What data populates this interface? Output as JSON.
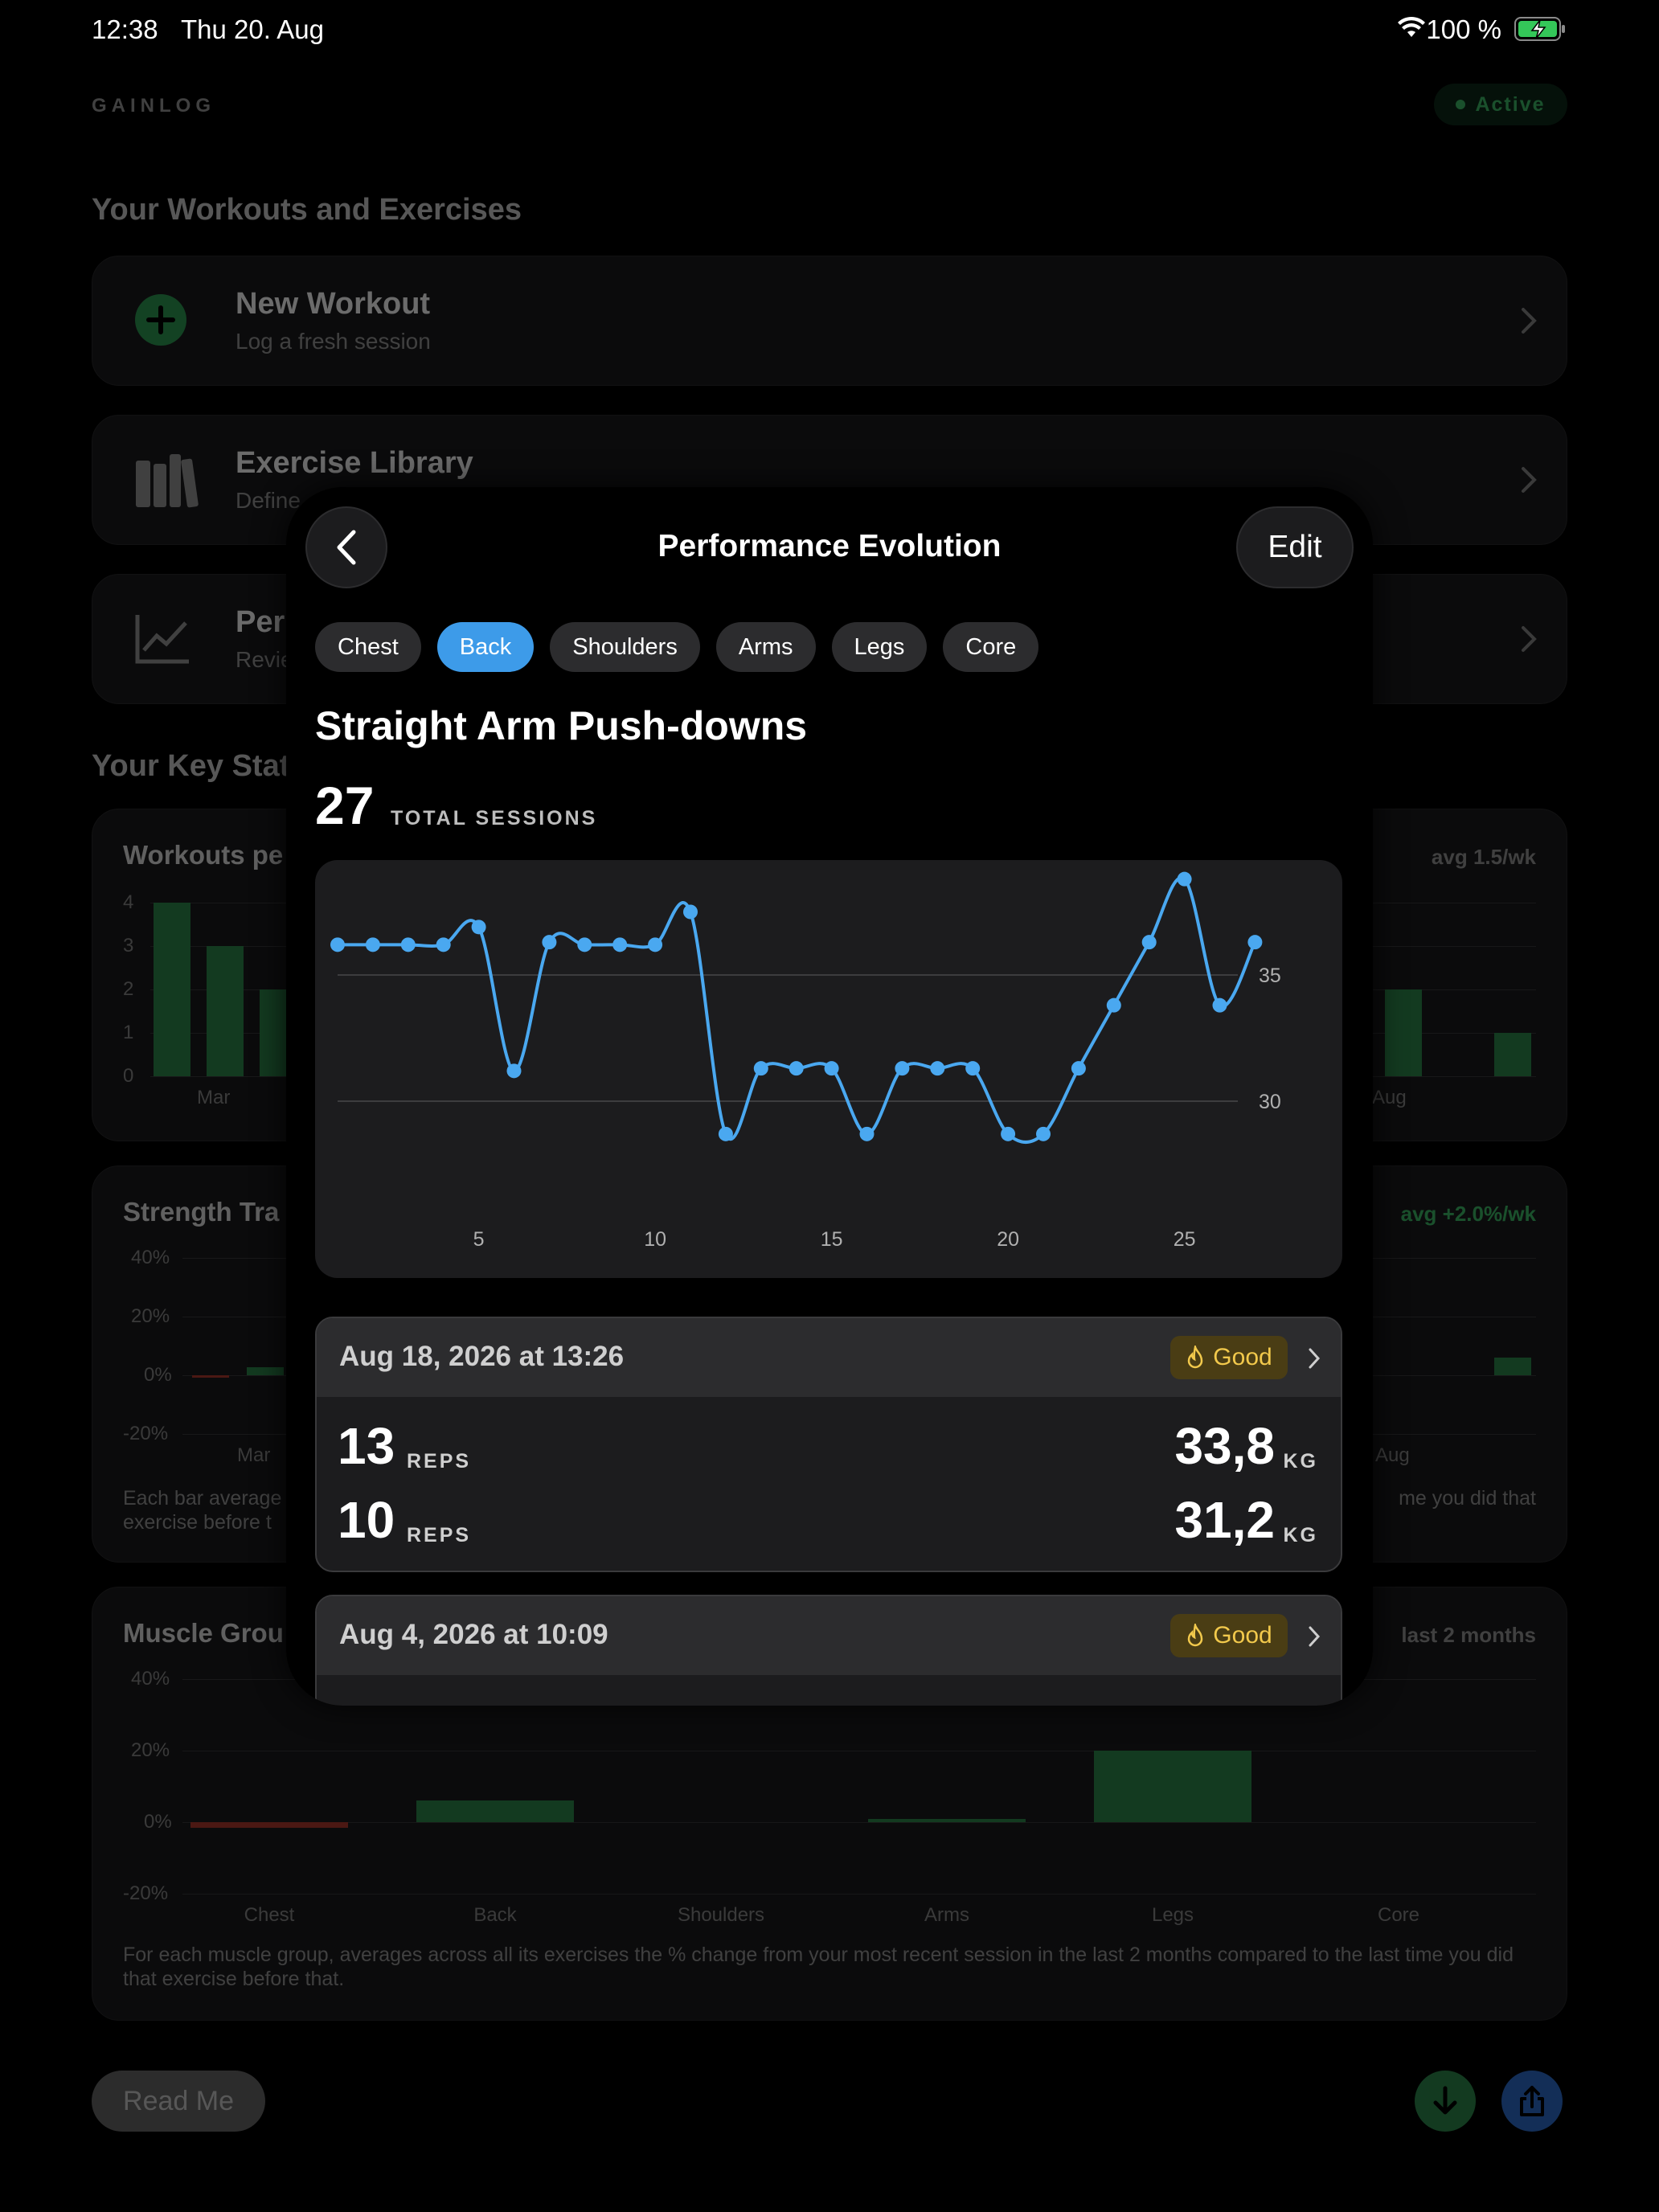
{
  "status_bar": {
    "time": "12:38",
    "date": "Thu 20. Aug",
    "battery": "100 %"
  },
  "app": {
    "brand": "GAINLOG",
    "status": "Active",
    "section_workouts": "Your Workouts and Exercises",
    "menu": [
      {
        "title": "New Workout",
        "subtitle": "Log a fresh session"
      },
      {
        "title": "Exercise Library",
        "subtitle": "Define"
      },
      {
        "title": "Per",
        "subtitle": "Revie"
      }
    ],
    "section_stats": "Your Key Stat",
    "workouts_card": {
      "title": "Workouts pe",
      "right": "avg 1.5/wk",
      "yticks": [
        "4",
        "3",
        "2",
        "1",
        "0"
      ],
      "xlabels": [
        "Mar",
        "Aug"
      ]
    },
    "strength_card": {
      "title": "Strength Tra",
      "right": "avg +2.0%/wk",
      "yticks": [
        "40%",
        "20%",
        "0%",
        "-20%"
      ],
      "xlabels": [
        "Mar",
        "Aug"
      ],
      "note_left": "Each bar average\nexercise before t",
      "note_right": "me you did that"
    },
    "muscle_card": {
      "title": "Muscle Grou",
      "right": "last 2 months",
      "yticks": [
        "40%",
        "20%",
        "0%",
        "-20%"
      ],
      "groups": [
        "Chest",
        "Back",
        "Shoulders",
        "Arms",
        "Legs",
        "Core"
      ],
      "values": [
        -1.5,
        6,
        0,
        1,
        20,
        0
      ],
      "note": "For each muscle group, averages across all its exercises the % change from your most recent session in the last 2 months compared to the last time you did that exercise before that."
    },
    "readme": "Read Me"
  },
  "modal": {
    "title": "Performance Evolution",
    "edit": "Edit",
    "chips": [
      "Chest",
      "Back",
      "Shoulders",
      "Arms",
      "Legs",
      "Core"
    ],
    "selected_chip": "Back",
    "exercise": "Straight Arm Push-downs",
    "total_sessions": "27",
    "total_sessions_label": "TOTAL SESSIONS",
    "entries": [
      {
        "date": "Aug 18, 2026 at 13:26",
        "rating": "Good",
        "sets": [
          {
            "reps": "13",
            "reps_unit": "REPS",
            "weight": "33,8",
            "weight_unit": "KG"
          },
          {
            "reps": "10",
            "reps_unit": "REPS",
            "weight": "31,2",
            "weight_unit": "KG"
          }
        ]
      },
      {
        "date": "Aug 4, 2026 at 10:09",
        "rating": "Good"
      }
    ]
  },
  "chart_data": {
    "type": "line",
    "x": [
      1,
      2,
      3,
      4,
      5,
      6,
      7,
      8,
      9,
      10,
      11,
      12,
      13,
      14,
      15,
      16,
      17,
      18,
      19,
      20,
      21,
      22,
      23,
      24,
      25,
      26,
      27
    ],
    "values": [
      36.2,
      36.2,
      36.2,
      36.2,
      36.9,
      31.2,
      36.3,
      36.2,
      36.2,
      36.2,
      37.5,
      28.7,
      31.3,
      31.3,
      31.3,
      28.7,
      31.3,
      31.3,
      31.3,
      28.7,
      28.7,
      31.3,
      33.8,
      36.3,
      38.8,
      33.8,
      36.3
    ],
    "xticks": [
      5,
      10,
      15,
      20,
      25
    ],
    "yticks": [
      30,
      35
    ],
    "ylim": [
      28,
      39
    ],
    "color": "#4aa8f0",
    "grid": true
  }
}
